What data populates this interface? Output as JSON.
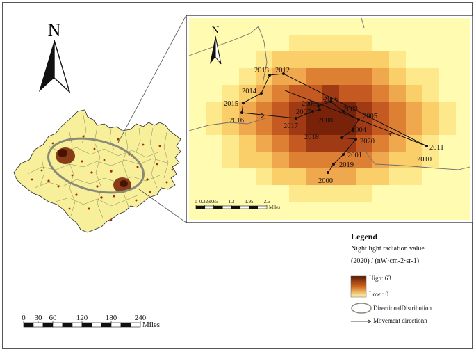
{
  "north_label_main": "N",
  "north_label_inset": "N",
  "main_scale": {
    "ticks": [
      "0",
      "30",
      "60",
      "120",
      "180",
      "240"
    ],
    "tick_values": [
      0,
      30,
      60,
      120,
      180,
      240
    ],
    "unit": "Miles"
  },
  "inset_scale": {
    "ticks": [
      "0",
      "0.325",
      "0.65",
      "1.3",
      "1.95",
      "2.6"
    ],
    "tick_values": [
      0,
      0.325,
      0.65,
      1.3,
      1.95,
      2.6
    ],
    "unit": "Miles"
  },
  "legend": {
    "title": "Legend",
    "subtitle": "Night light radiation value",
    "subtitle2": "(2020) / (nW·cm-2·sr-1)",
    "high_label": "High:  63",
    "low_label": "Low :  0",
    "high_value": 63,
    "low_value": 0,
    "directional_label": "DirectionalDistribution",
    "movement_label": "Movement directionn"
  },
  "colors": {
    "high": "#5a1a05",
    "mid": "#d2691e",
    "low": "#fffbb0",
    "ellipse": "#8a8a78",
    "region_fill": "#f7ef9a"
  },
  "centroid_path": [
    {
      "year": "2000",
      "label": "2000"
    },
    {
      "year": "2019",
      "label": "2019"
    },
    {
      "year": "2001",
      "label": "2001"
    },
    {
      "year": "2020",
      "label": "2020"
    },
    {
      "year": "2018",
      "label": "2018"
    },
    {
      "year": "2004",
      "label": "2004"
    },
    {
      "year": "2005",
      "label": "2005"
    },
    {
      "year": "2003",
      "label": "2003"
    },
    {
      "year": "2006",
      "label": "2006"
    },
    {
      "year": "2009",
      "label": "2009"
    },
    {
      "year": "2008",
      "label": "2008"
    },
    {
      "year": "2007",
      "label": "2007"
    },
    {
      "year": "2017",
      "label": "2017"
    },
    {
      "year": "2016",
      "label": "2016"
    },
    {
      "year": "2015",
      "label": "2015"
    },
    {
      "year": "2014",
      "label": "2014"
    },
    {
      "year": "2013",
      "label": "2013"
    },
    {
      "year": "2012",
      "label": "2012"
    },
    {
      "year": "2011",
      "label": "2011"
    },
    {
      "year": "2010",
      "label": "2010"
    }
  ]
}
